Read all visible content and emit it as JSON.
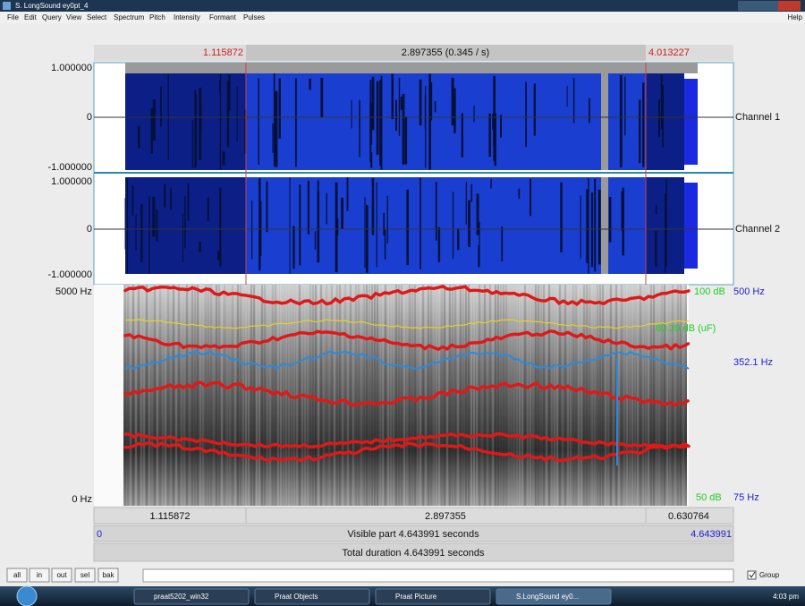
{
  "window": {
    "title": "S. LongSound ey0pt_4",
    "menu": [
      "File",
      "Edit",
      "Query",
      "View",
      "Select",
      "Spectrum",
      "Pitch",
      "Intensity",
      "Formant",
      "Pulses",
      "Help"
    ]
  },
  "selection_bar": {
    "start": "1.115872",
    "duration": "2.897355 (0.345 / s)",
    "end": "4.013227"
  },
  "waveform": {
    "channels": [
      {
        "label": "Channel 1",
        "max": "1.000000",
        "zero": "0",
        "min": "-1.000000"
      },
      {
        "label": "Channel 2",
        "max": "1.000000",
        "zero": "0",
        "min": "-1.000000"
      }
    ]
  },
  "spectrogram": {
    "top": "5000 Hz",
    "bottom": "0 Hz",
    "db_max": "100 dB",
    "pitch_max": "500 Hz",
    "intensity": "80.39 dB (uF)",
    "pitch_value": "352.1 Hz",
    "db_min": "50 dB",
    "pitch_min": "75 Hz"
  },
  "bottom_bars": {
    "left": "1.115872",
    "middle": "2.897355",
    "right": "0.630764",
    "visible_start": "0",
    "visible": "Visible part 4.643991 seconds",
    "visible_end": "4.643991",
    "total": "Total duration 4.643991 seconds"
  },
  "buttons": [
    "all",
    "in",
    "out",
    "sel",
    "bak"
  ],
  "group": "Group",
  "taskbar": {
    "items": [
      "praat5202_win32",
      "Praat Objects",
      "Praat Picture",
      "S.LongSound ey0..."
    ],
    "clock": "4:03 pm"
  }
}
